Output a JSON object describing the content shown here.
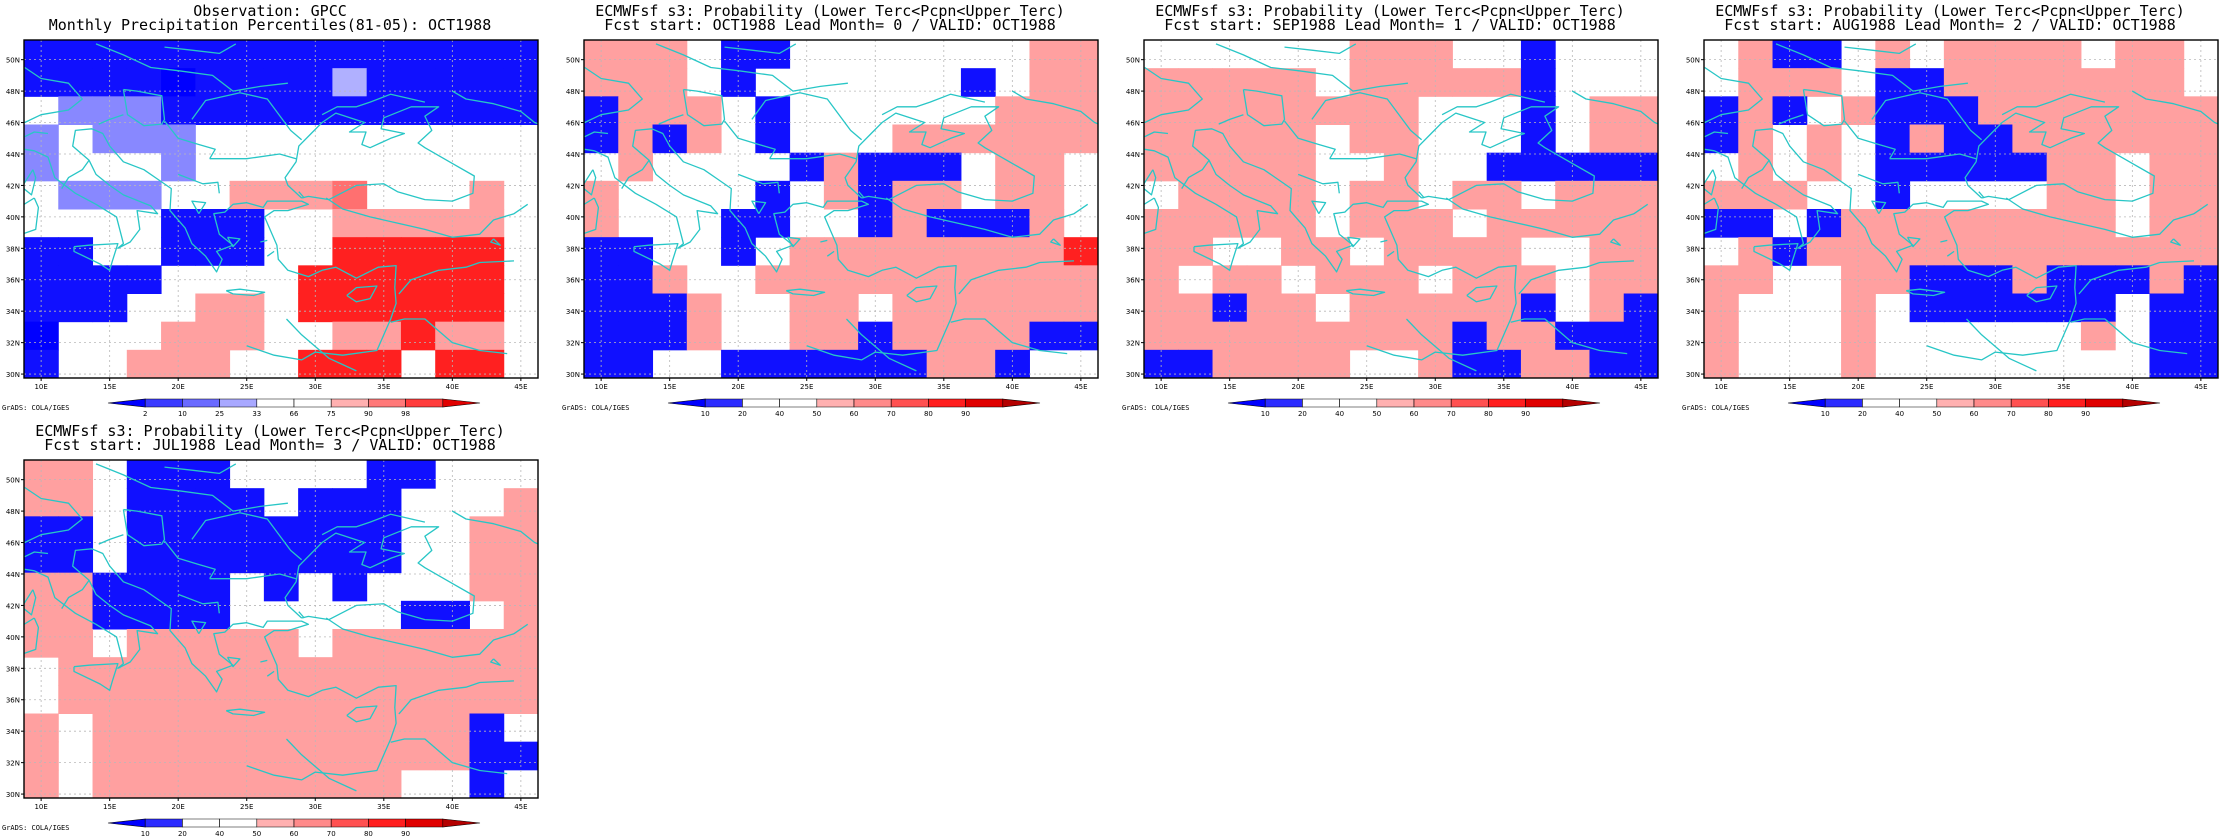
{
  "colors": {
    "coast": "#28c6c6",
    "grid": "#b8b8b8",
    "obs_scale": [
      "#0000ff",
      "#3a3aff",
      "#6a6aff",
      "#a8a8ff",
      "#ffffff",
      "#ffffff",
      "#ffb0b0",
      "#ff7878",
      "#ff3c3c",
      "#e00000"
    ],
    "prob_scale": [
      "#0000ff",
      "#2b2bff",
      "#ffffff",
      "#ffffff",
      "#ffb0b0",
      "#ff8a8a",
      "#ff5050",
      "#ff1e1e",
      "#e00000",
      "#b40000"
    ]
  },
  "axes": {
    "lon_labels": [
      "10E",
      "15E",
      "20E",
      "25E",
      "30E",
      "35E",
      "40E",
      "45E"
    ],
    "lon_values": [
      10,
      15,
      20,
      25,
      30,
      35,
      40,
      45
    ],
    "lat_labels": [
      "30N",
      "32N",
      "34N",
      "36N",
      "38N",
      "40N",
      "42N",
      "44N",
      "46N",
      "48N",
      "50N"
    ],
    "lat_values": [
      30,
      32,
      34,
      36,
      38,
      40,
      42,
      44,
      46,
      48,
      50
    ],
    "lon_range": [
      8.75,
      46.25
    ],
    "lat_range": [
      29.75,
      51.25
    ]
  },
  "panels": [
    {
      "title1": "Observation: GPCC",
      "title2": "Monthly Precipitation Percentiles(81-05): OCT1988",
      "legend_type": "obs",
      "legend_labels": [
        "2",
        "10",
        "25",
        "33",
        "66",
        "75",
        "90",
        "98"
      ],
      "credit": "GrADS: COLA/IGES"
    },
    {
      "title1": "ECMWFsf s3: Probability (Lower Terc<Pcpn<Upper Terc)",
      "title2": "Fcst start: OCT1988  Lead Month= 0 / VALID: OCT1988",
      "legend_type": "prob",
      "legend_labels": [
        "10",
        "20",
        "40",
        "50",
        "60",
        "70",
        "80",
        "90"
      ],
      "credit": "GrADS: COLA/IGES"
    },
    {
      "title1": "ECMWFsf s3: Probability (Lower Terc<Pcpn<Upper Terc)",
      "title2": "Fcst start: SEP1988  Lead Month= 1 / VALID: OCT1988",
      "legend_type": "prob",
      "legend_labels": [
        "10",
        "20",
        "40",
        "50",
        "60",
        "70",
        "80",
        "90"
      ],
      "credit": "GrADS: COLA/IGES"
    },
    {
      "title1": "ECMWFsf s3: Probability (Lower Terc<Pcpn<Upper Terc)",
      "title2": "Fcst start: AUG1988  Lead Month= 2 / VALID: OCT1988",
      "legend_type": "prob",
      "legend_labels": [
        "10",
        "20",
        "40",
        "50",
        "60",
        "70",
        "80",
        "90"
      ],
      "credit": "GrADS: COLA/IGES"
    },
    {
      "title1": "ECMWFsf s3: Probability (Lower Terc<Pcpn<Upper Terc)",
      "title2": "Fcst start: JUL1988  Lead Month= 3 / VALID: OCT1988",
      "legend_type": "prob",
      "legend_labels": [
        "10",
        "20",
        "40",
        "50",
        "60",
        "70",
        "80",
        "90"
      ],
      "credit": "GrADS: COLA/IGES"
    }
  ]
}
